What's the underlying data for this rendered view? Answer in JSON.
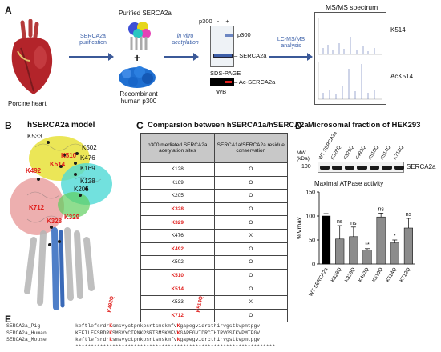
{
  "panel_a": {
    "letter": "A",
    "heart_label": "Porcine heart",
    "arrow1_label": "SERCA2a purification",
    "purified_label": "Purified SERCA2a",
    "plus": "+",
    "recombinant_label": "Recombinant human p300",
    "arrow2_label": "in vitro acetylation",
    "gel_header_p300": "p300",
    "gel_minus": "-",
    "gel_plus": "+",
    "gel_band_p300": "p300",
    "gel_band_serca": "SERCA2a",
    "sds_label": "SDS-PAGE",
    "wb_band": "Ac-SERCA2a",
    "wb_label": "WB",
    "arrow3_label": "LC-MS/MS analysis",
    "ms_title": "MS/MS spectrum",
    "ms_k514": "K514",
    "ms_ack514": "AcK514"
  },
  "panel_b": {
    "letter": "B",
    "title": "hSERCA2a model",
    "residues": [
      "K533",
      "K502",
      "K510",
      "K476",
      "K514",
      "K492",
      "K169",
      "K128",
      "K205",
      "K712",
      "K329",
      "K328"
    ]
  },
  "panel_c": {
    "letter": "C",
    "title": "Comparsion between hSERCA1a/hSERCA2a",
    "col1": "p300 mediated SERCA2a acetylation sites",
    "col2": "SERCA1a/SERCA2a residue conservation",
    "rows": [
      {
        "site": "K128",
        "cons": "O",
        "red": false
      },
      {
        "site": "K169",
        "cons": "O",
        "red": false
      },
      {
        "site": "K205",
        "cons": "O",
        "red": false
      },
      {
        "site": "K328",
        "cons": "O",
        "red": true
      },
      {
        "site": "K329",
        "cons": "O",
        "red": true
      },
      {
        "site": "K476",
        "cons": "X",
        "red": false
      },
      {
        "site": "K492",
        "cons": "O",
        "red": true
      },
      {
        "site": "K502",
        "cons": "O",
        "red": false
      },
      {
        "site": "K510",
        "cons": "O",
        "red": true
      },
      {
        "site": "K514",
        "cons": "O",
        "red": true
      },
      {
        "site": "K533",
        "cons": "X",
        "red": false
      },
      {
        "site": "K712",
        "cons": "O",
        "red": true
      }
    ]
  },
  "panel_d": {
    "letter": "D",
    "title": "Microsomal fraction of HEK293",
    "mw_label": "MW (kDa)",
    "mw_value": "100",
    "lanes": [
      "WT SERCA2a",
      "K328Q",
      "K329Q",
      "K492Q",
      "K510Q",
      "K514Q",
      "K712Q"
    ],
    "blot_label": "SERCA2a",
    "atpase_title": "Maximal ATPase activity",
    "ylabel": "%Vmax"
  },
  "chart_data": {
    "type": "bar",
    "categories": [
      "WT SERCA2a",
      "K328Q",
      "K329Q",
      "K492Q",
      "K510Q",
      "K514Q",
      "K712Q"
    ],
    "values": [
      100,
      52,
      57,
      29,
      98,
      44,
      75
    ],
    "errors": [
      5,
      28,
      20,
      3,
      8,
      6,
      20
    ],
    "significance": [
      "",
      "ns",
      "ns",
      "**",
      "ns",
      "*",
      "ns"
    ],
    "ylabel": "%Vmax",
    "ylim": [
      0,
      150
    ],
    "yticks": [
      0,
      50,
      100,
      150
    ],
    "colors": [
      "#000000",
      "#8c8c8c",
      "#8c8c8c",
      "#8c8c8c",
      "#8c8c8c",
      "#8c8c8c",
      "#8c8c8c"
    ]
  },
  "panel_e": {
    "letter": "E",
    "mut1": "K492Q",
    "mut2": "K514Q",
    "rows": [
      {
        "name": "SERCA2a_Pig",
        "pre": "keftlefsrdr",
        "k1": "K",
        "mid": "smsvyctpnkpsrtsmskmfv",
        "k2": "K",
        "post": "gapegvidrcthirvgstkvpmtpgv"
      },
      {
        "name": "SERCA2a_Human",
        "pre": "KEFTLEFSRDR",
        "k1": "K",
        "mid": "SMSVYCTPNKPSRTSMSKMFV",
        "k2": "K",
        "post": "GAPEGVIDRCTHIRVGSTKVPMTPGV"
      },
      {
        "name": "SERCA2a_Mouse",
        "pre": "keftlefsrdr",
        "k1": "k",
        "mid": "smsvyctpnkpsrtsmskmfv",
        "k2": "k",
        "post": "gapegvidrcthirvgstkvpmtpgv"
      }
    ],
    "consensus": "*****************************************************************"
  }
}
